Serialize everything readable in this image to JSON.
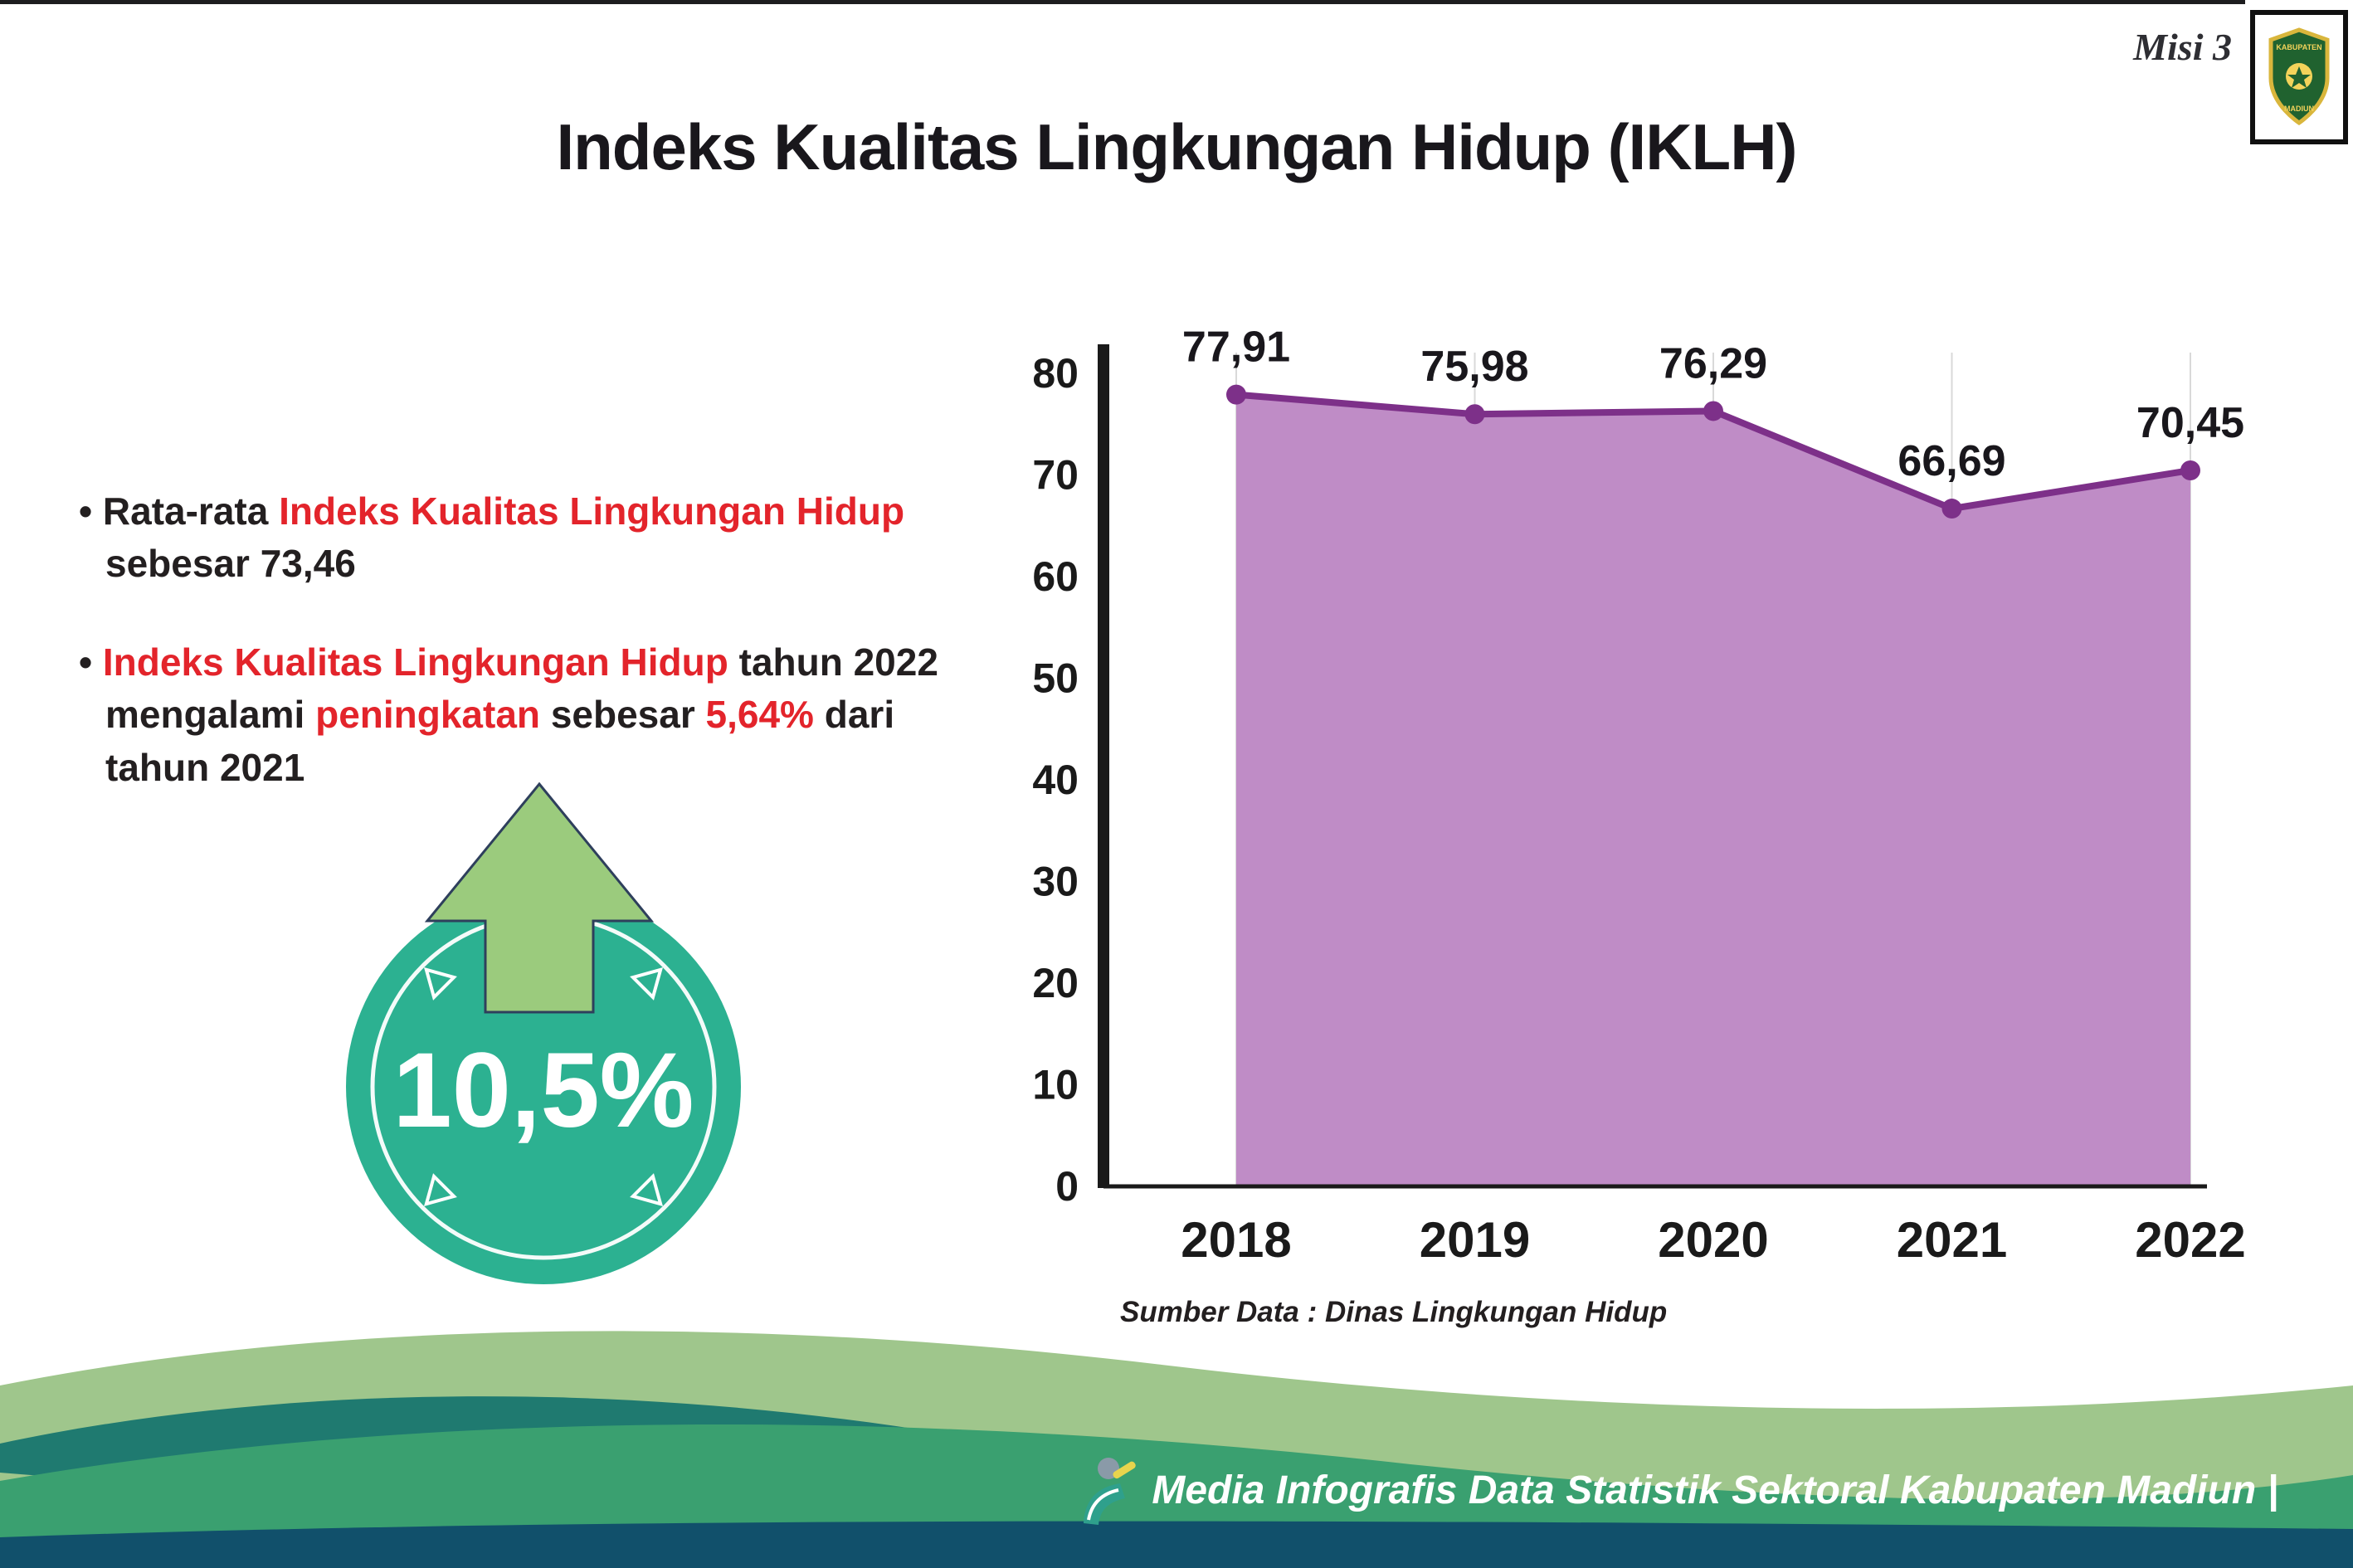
{
  "header": {
    "misi_label": "Misi 3"
  },
  "logo": {
    "line1": "KABUPATEN",
    "line2": "MADIUN"
  },
  "title": "Indeks Kualitas Lingkungan Hidup (IKLH)",
  "bullet_marker": "•",
  "bullets": [
    {
      "segments": [
        {
          "text": "Rata-rata "
        },
        {
          "text": "Indeks Kualitas Lingkungan Hidup"
        },
        {
          "text": " sebesar 73,46"
        }
      ]
    },
    {
      "segments": [
        {
          "text": "Indeks Kualitas Lingkungan Hidup"
        },
        {
          "text": " tahun 2022 mengalami "
        },
        {
          "text": "peningkatan"
        },
        {
          "text": " sebesar "
        },
        {
          "text": "5,64%"
        },
        {
          "text": " dari tahun 2021"
        }
      ]
    }
  ],
  "highlight": {
    "value": "10,5%"
  },
  "chart_data": {
    "type": "area",
    "title": "Indeks Kualitas Lingkungan Hidup (IKLH)",
    "categories": [
      "2018",
      "2019",
      "2020",
      "2021",
      "2022"
    ],
    "values": [
      77.91,
      75.98,
      76.29,
      66.69,
      70.45
    ],
    "value_labels": [
      "77,91",
      "75,98",
      "76,29",
      "66,69",
      "70,45"
    ],
    "ylim": [
      0,
      80
    ],
    "yticks": [
      0,
      10,
      20,
      30,
      40,
      50,
      60,
      70,
      80
    ],
    "xlabel": "",
    "ylabel": "",
    "grid": "vertical-light",
    "legend": "none",
    "area_color": "#bf8cc6",
    "line_color": "#7d3089",
    "source": "Sumber Data : Dinas Lingkungan Hidup"
  },
  "footer": {
    "text": "Media Infografis Data Statistik Sektoral Kabupaten Madiun |"
  },
  "colors": {
    "red_accent": "#e3242b",
    "area_purple": "#bf8cc6",
    "line_purple": "#7d3089",
    "badge_teal": "#2cb191",
    "arrow_green": "#9bcb7d",
    "wave_light": "#9fc68c",
    "wave_accent": "#1f7a70",
    "wave_main": "#3aa070",
    "wave_bottom": "#11506b"
  }
}
